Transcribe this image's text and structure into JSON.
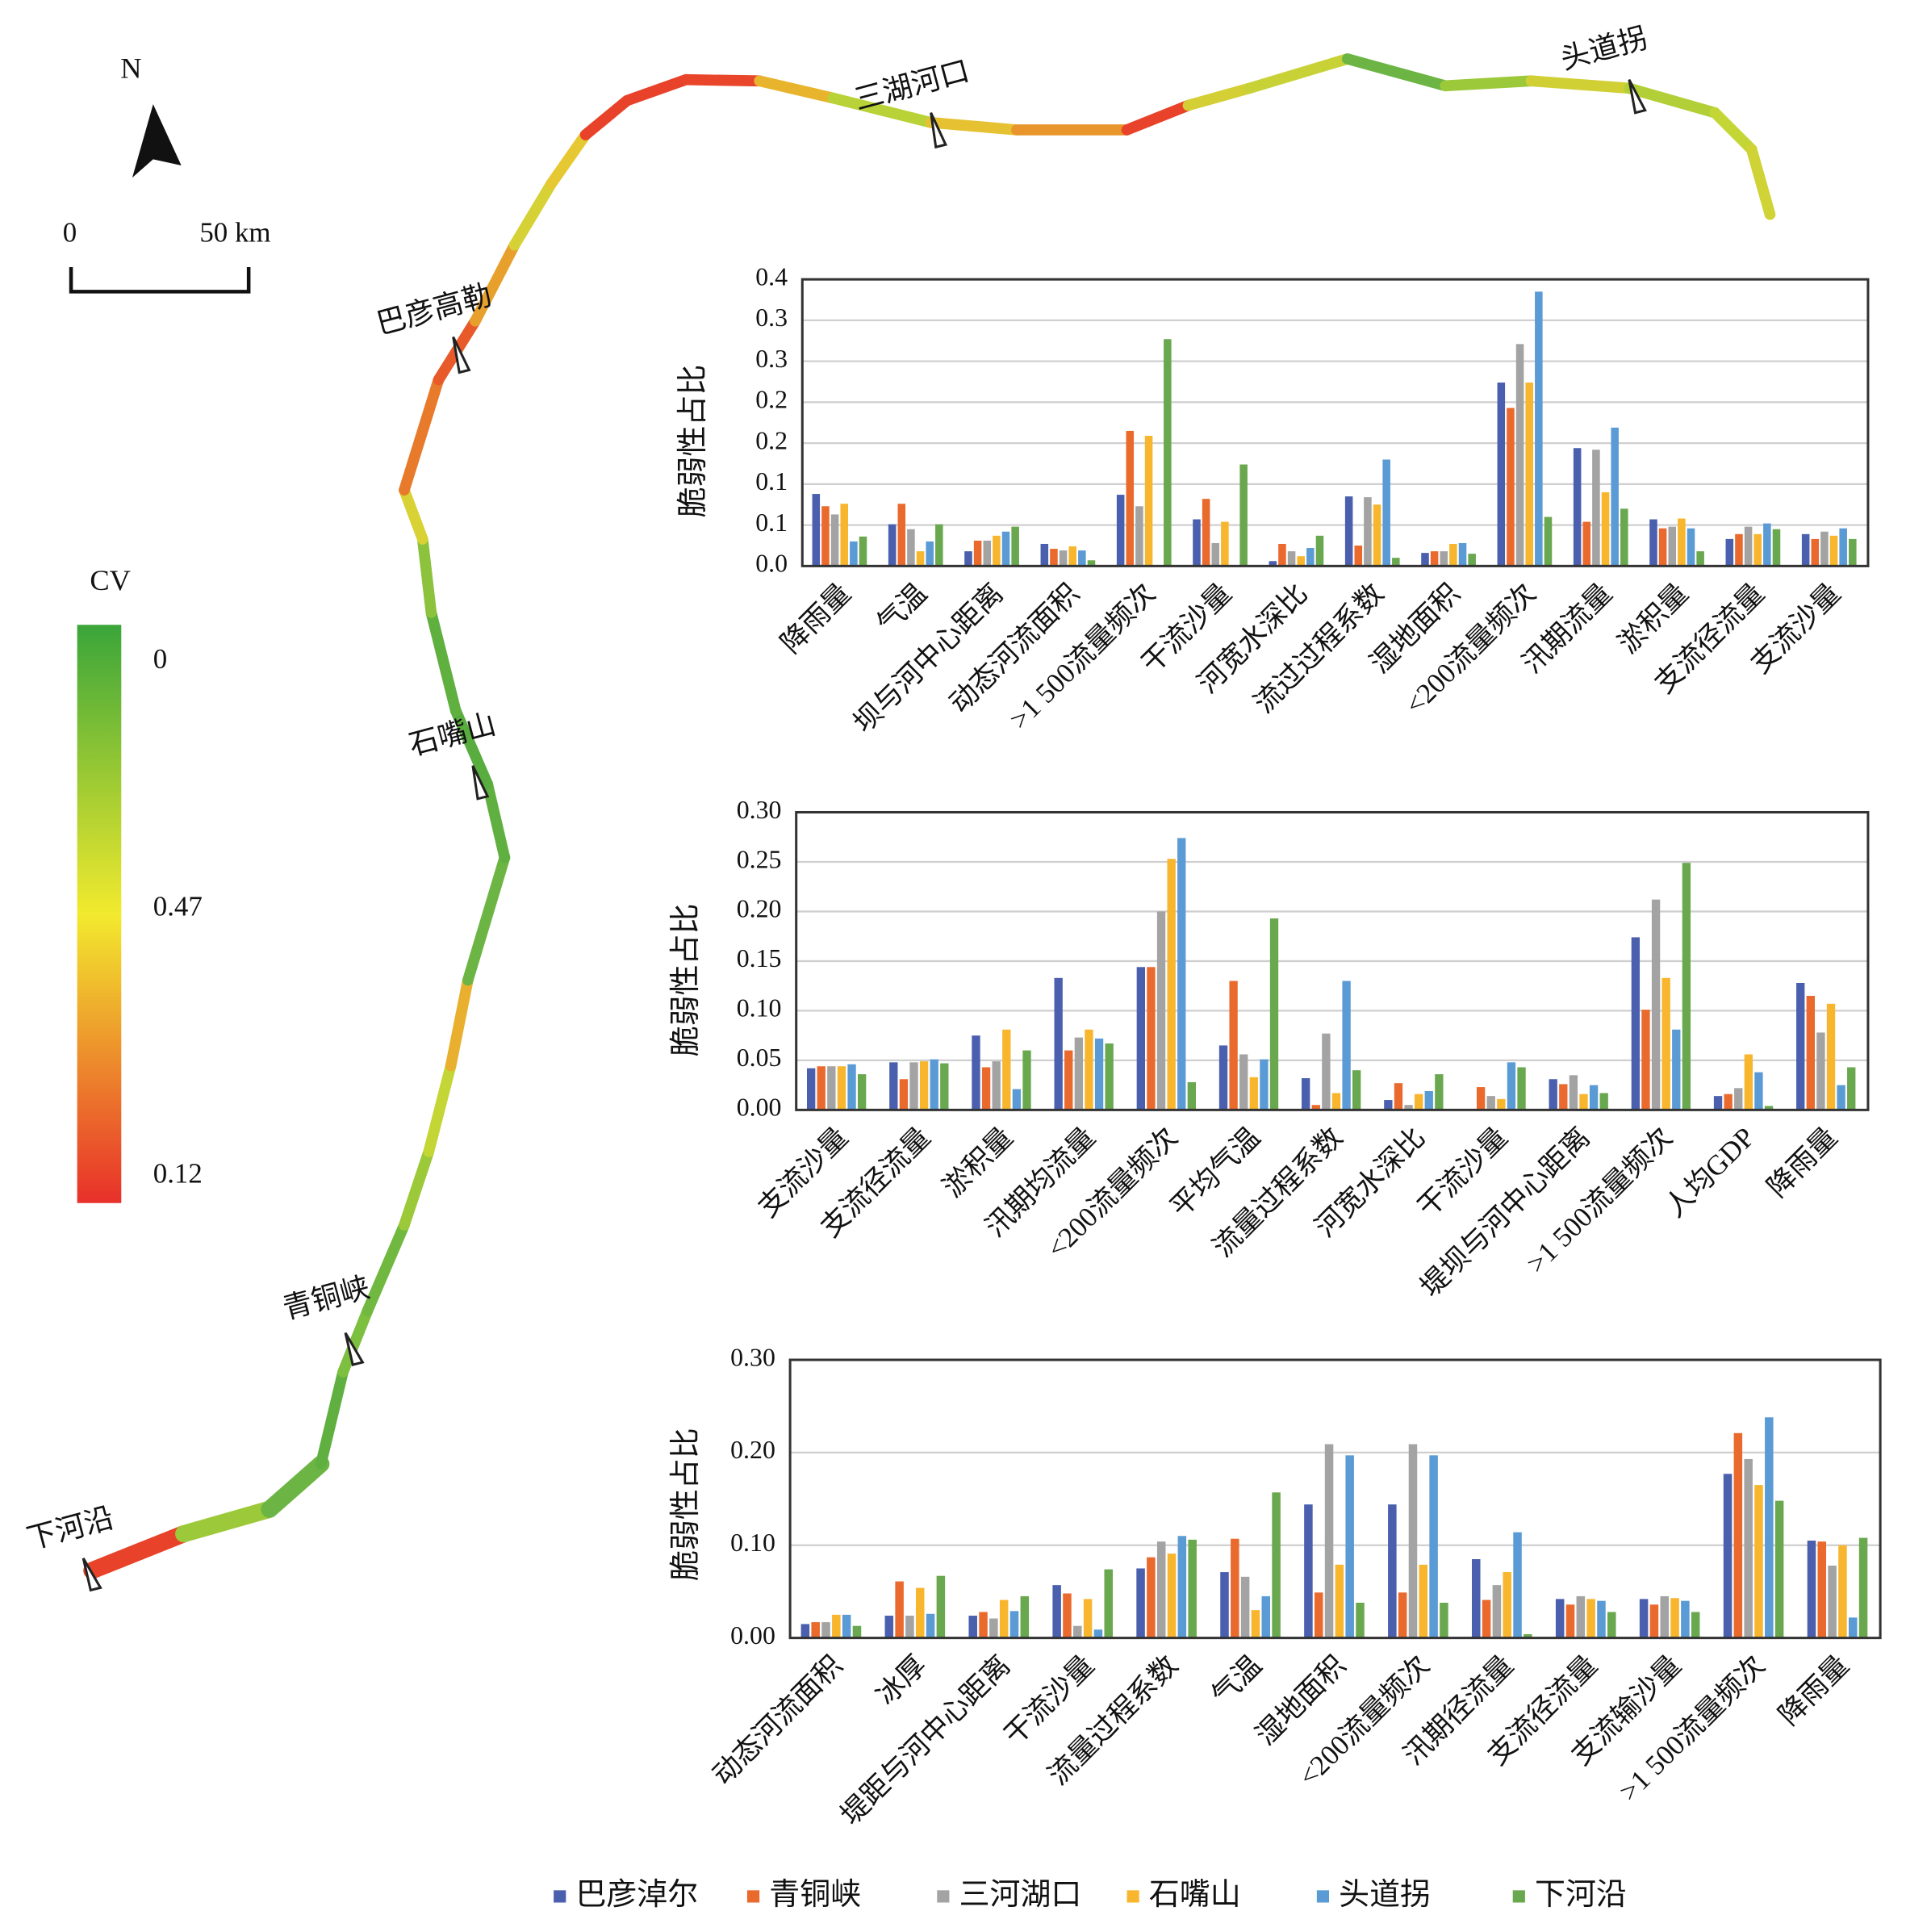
{
  "map": {
    "north": "N",
    "scale": {
      "start": "0",
      "end": "50 km"
    },
    "cv_legend": {
      "title": "CV",
      "labels": [
        "0",
        "0.47",
        "0.12"
      ]
    },
    "places": [
      "三湖河口",
      "头道拐",
      "巴彦高勒",
      "石嘴山",
      "青铜峡",
      "下河沿"
    ]
  },
  "chart_data": [
    {
      "type": "bar",
      "y_label": "脆弱性占比",
      "ylim": [
        0,
        0.35
      ],
      "yticks": [
        {
          "value": 0,
          "label": "0.0"
        },
        {
          "value": 0.05,
          "label": "0.1"
        },
        0.1,
        {
          "value": 0.15,
          "label": "0.2"
        },
        0.2,
        {
          "value": 0.25,
          "label": "0.3"
        },
        0.3,
        {
          "value": 0.35,
          "label": "0.4"
        }
      ],
      "grid": true,
      "categories": [
        "降雨量",
        "气温",
        "坝与河中心距离",
        "动态河流面积",
        ">1 500流量频次",
        "干流沙量",
        "河宽水深比",
        "流过过程系数",
        "湿地面积",
        "<200流量频次",
        "汛期流量",
        "淤积量",
        "支流径流量",
        "支流沙量"
      ],
      "series": [
        {
          "name": "巴彦淖尔",
          "color": "#4a5fae",
          "values": [
            0.088,
            0.051,
            0.018,
            0.027,
            0.087,
            0.057,
            0.006,
            0.085,
            0.016,
            0.224,
            0.144,
            0.057,
            0.033,
            0.039
          ]
        },
        {
          "name": "青铜峡",
          "color": "#ea6a2e",
          "values": [
            0.073,
            0.076,
            0.031,
            0.021,
            0.165,
            0.082,
            0.027,
            0.025,
            0.018,
            0.193,
            0.054,
            0.046,
            0.039,
            0.033
          ]
        },
        {
          "name": "三河湖口",
          "color": "#a3a3a3",
          "values": [
            0.063,
            0.045,
            0.031,
            0.019,
            0.073,
            0.028,
            0.018,
            0.084,
            0.018,
            0.271,
            0.142,
            0.048,
            0.048,
            0.042
          ]
        },
        {
          "name": "石嘴山",
          "color": "#f8b62e",
          "values": [
            0.076,
            0.018,
            0.037,
            0.024,
            0.159,
            0.054,
            0.012,
            0.075,
            0.027,
            0.224,
            0.09,
            0.058,
            0.039,
            0.037
          ]
        },
        {
          "name": "头道拐",
          "color": "#5b9bd5",
          "values": [
            0.03,
            0.03,
            0.042,
            0.019,
            0,
            0,
            0.022,
            0.13,
            0.028,
            0.335,
            0.169,
            0.046,
            0.052,
            0.046
          ]
        },
        {
          "name": "下河沿",
          "color": "#6aa84f",
          "values": [
            0.036,
            0.051,
            0.048,
            0.007,
            0.277,
            0.124,
            0.037,
            0.01,
            0.015,
            0.06,
            0.07,
            0.018,
            0.045,
            0.033
          ]
        }
      ]
    },
    {
      "type": "bar",
      "y_label": "脆弱性占比",
      "ylim": [
        0,
        0.3
      ],
      "yticks": [
        {
          "value": 0,
          "label": "0.00"
        },
        {
          "value": 0.05,
          "label": "0.05"
        },
        {
          "value": 0.1,
          "label": "0.10"
        },
        {
          "value": 0.15,
          "label": "0.15"
        },
        {
          "value": 0.2,
          "label": "0.20"
        },
        {
          "value": 0.25,
          "label": "0.25"
        },
        {
          "value": 0.3,
          "label": "0.30"
        }
      ],
      "grid": true,
      "categories": [
        "支流沙量",
        "支流径流量",
        "淤积量",
        "汛期均流量",
        "<200流量频次",
        "平均气温",
        "流量过程系数",
        "河宽水深比",
        "干流沙量",
        "堤坝与河中心距离",
        ">1 500流量频次",
        "人均GDP",
        "降雨量"
      ],
      "series": [
        {
          "color": "#4a5fae",
          "values": [
            0.042,
            0.048,
            0.075,
            0.133,
            0.144,
            0.065,
            0.032,
            0.01,
            0.001,
            0.031,
            0.174,
            0.014,
            0.128
          ]
        },
        {
          "color": "#ea6a2e",
          "values": [
            0.044,
            0.031,
            0.043,
            0.06,
            0.144,
            0.13,
            0.005,
            0.027,
            0.023,
            0.026,
            0.101,
            0.016,
            0.115
          ]
        },
        {
          "color": "#a3a3a3",
          "values": [
            0.044,
            0.048,
            0.049,
            0.073,
            0.2,
            0.056,
            0.077,
            0.005,
            0.014,
            0.035,
            0.212,
            0.022,
            0.078
          ]
        },
        {
          "color": "#f8b62e",
          "values": [
            0.044,
            0.049,
            0.081,
            0.081,
            0.253,
            0.033,
            0.017,
            0.016,
            0.011,
            0.016,
            0.133,
            0.056,
            0.107
          ]
        },
        {
          "color": "#5b9bd5",
          "values": [
            0.046,
            0.051,
            0.021,
            0.072,
            0.274,
            0.051,
            0.13,
            0.019,
            0.048,
            0.025,
            0.081,
            0.038,
            0.025
          ]
        },
        {
          "color": "#6aa84f",
          "values": [
            0.036,
            0.047,
            0.06,
            0.067,
            0.028,
            0.193,
            0.04,
            0.036,
            0.043,
            0.017,
            0.249,
            0.004,
            0.043
          ]
        }
      ]
    },
    {
      "type": "bar",
      "y_label": "脆弱性占比",
      "ylim": [
        0,
        0.3
      ],
      "yticks": [
        {
          "value": 0,
          "label": "0.00"
        },
        {
          "value": 0.1,
          "label": "0.10"
        },
        {
          "value": 0.2,
          "label": "0.20"
        },
        {
          "value": 0.3,
          "label": "0.30"
        }
      ],
      "grid": true,
      "categories": [
        "动态河流面积",
        "冰厚",
        "堤距与河中心距离",
        "干流沙量",
        "流量过程系数",
        "气温",
        "湿地面积",
        "<200流量频次",
        "汛期径流量",
        "支流径流量",
        "支流输沙量",
        ">1 500流量频次",
        "降雨量"
      ],
      "series": [
        {
          "color": "#4a5fae",
          "values": [
            0.015,
            0.024,
            0.024,
            0.057,
            0.075,
            0.071,
            0.144,
            0.144,
            0.085,
            0.042,
            0.042,
            0.177,
            0.105
          ]
        },
        {
          "color": "#ea6a2e",
          "values": [
            0.017,
            0.061,
            0.028,
            0.048,
            0.087,
            0.107,
            0.049,
            0.049,
            0.041,
            0.036,
            0.036,
            0.221,
            0.104
          ]
        },
        {
          "color": "#a3a3a3",
          "values": [
            0.017,
            0.024,
            0.021,
            0.013,
            0.104,
            0.066,
            0.209,
            0.209,
            0.057,
            0.045,
            0.045,
            0.193,
            0.078
          ]
        },
        {
          "color": "#f8b62e",
          "values": [
            0.025,
            0.054,
            0.041,
            0.042,
            0.091,
            0.03,
            0.079,
            0.079,
            0.071,
            0.042,
            0.043,
            0.165,
            0.1
          ]
        },
        {
          "color": "#5b9bd5",
          "values": [
            0.025,
            0.026,
            0.029,
            0.009,
            0.11,
            0.045,
            0.197,
            0.197,
            0.114,
            0.04,
            0.04,
            0.238,
            0.022
          ]
        },
        {
          "color": "#6aa84f",
          "values": [
            0.013,
            0.067,
            0.045,
            0.074,
            0.106,
            0.157,
            0.038,
            0.038,
            0.004,
            0.028,
            0.028,
            0.148,
            0.108
          ]
        }
      ]
    }
  ]
}
